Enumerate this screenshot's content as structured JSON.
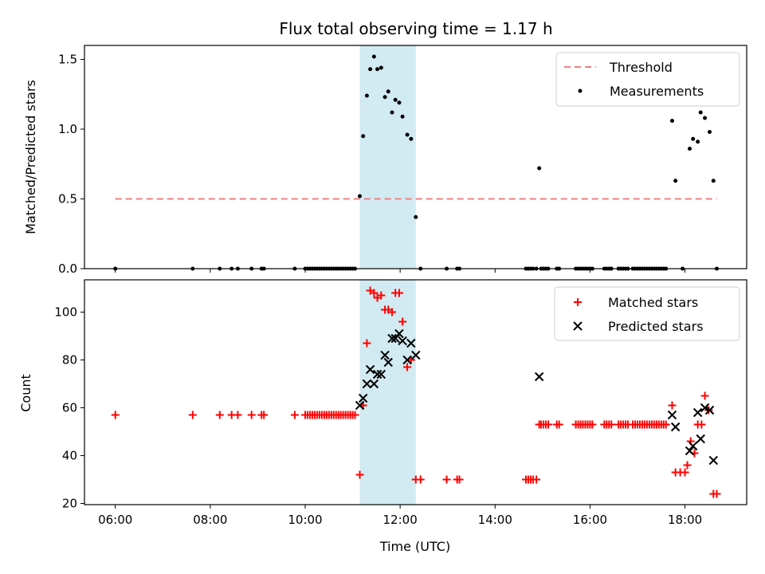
{
  "title": "Flux total observing time = 1.17 h",
  "colors": {
    "threshold": "#f08080",
    "measurement": "#000000",
    "matched": "#ff0000",
    "predicted": "#000000",
    "span": "#add8e6"
  },
  "chart_data": [
    {
      "type": "scatter",
      "ylabel": "Matched/Predicted stars",
      "ylim": [
        0,
        1.6
      ],
      "yticks": [
        0.0,
        0.5,
        1.0,
        1.5
      ],
      "ytick_labels": [
        "0.0",
        "0.5",
        "1.0",
        "1.5"
      ],
      "xlim": [
        5.35,
        19.3
      ],
      "xticks": [
        6,
        8,
        10,
        12,
        14,
        16,
        18
      ],
      "shaded_span": [
        11.15,
        12.33
      ],
      "legend": {
        "location": "upper right",
        "entries": [
          "Threshold",
          "Measurements"
        ]
      },
      "threshold": {
        "name": "Threshold",
        "value": 0.5,
        "x": [
          6.0,
          18.67
        ]
      },
      "series": [
        {
          "name": "Measurements",
          "marker": "dot",
          "points": [
            [
              6.0,
              0
            ],
            [
              7.63,
              0
            ],
            [
              8.2,
              0
            ],
            [
              8.45,
              0
            ],
            [
              8.58,
              0
            ],
            [
              8.87,
              0
            ],
            [
              9.08,
              0
            ],
            [
              9.13,
              0
            ],
            [
              9.78,
              0
            ],
            [
              10.0,
              0
            ],
            [
              10.05,
              0
            ],
            [
              10.1,
              0
            ],
            [
              10.15,
              0
            ],
            [
              10.2,
              0
            ],
            [
              10.25,
              0
            ],
            [
              10.3,
              0
            ],
            [
              10.35,
              0
            ],
            [
              10.4,
              0
            ],
            [
              10.45,
              0
            ],
            [
              10.5,
              0
            ],
            [
              10.55,
              0
            ],
            [
              10.6,
              0
            ],
            [
              10.65,
              0
            ],
            [
              10.7,
              0
            ],
            [
              10.75,
              0
            ],
            [
              10.8,
              0
            ],
            [
              10.85,
              0
            ],
            [
              10.9,
              0
            ],
            [
              10.95,
              0
            ],
            [
              11.0,
              0
            ],
            [
              11.05,
              0
            ],
            [
              11.15,
              0.52
            ],
            [
              11.22,
              0.95
            ],
            [
              11.3,
              1.24
            ],
            [
              11.37,
              1.43
            ],
            [
              11.45,
              1.52
            ],
            [
              11.52,
              1.43
            ],
            [
              11.6,
              1.44
            ],
            [
              11.68,
              1.23
            ],
            [
              11.75,
              1.27
            ],
            [
              11.83,
              1.12
            ],
            [
              11.9,
              1.21
            ],
            [
              11.98,
              1.19
            ],
            [
              12.05,
              1.09
            ],
            [
              12.15,
              0.96
            ],
            [
              12.23,
              0.93
            ],
            [
              12.33,
              0.37
            ],
            [
              12.43,
              0
            ],
            [
              12.98,
              0
            ],
            [
              13.2,
              0
            ],
            [
              13.25,
              0
            ],
            [
              14.65,
              0
            ],
            [
              14.7,
              0
            ],
            [
              14.75,
              0
            ],
            [
              14.8,
              0
            ],
            [
              14.87,
              0
            ],
            [
              14.93,
              0.72
            ],
            [
              14.97,
              0
            ],
            [
              15.02,
              0
            ],
            [
              15.07,
              0
            ],
            [
              15.12,
              0
            ],
            [
              15.3,
              0
            ],
            [
              15.35,
              0
            ],
            [
              15.7,
              0
            ],
            [
              15.75,
              0
            ],
            [
              15.8,
              0
            ],
            [
              15.85,
              0
            ],
            [
              15.9,
              0
            ],
            [
              15.95,
              0
            ],
            [
              16.0,
              0
            ],
            [
              16.05,
              0
            ],
            [
              16.3,
              0
            ],
            [
              16.35,
              0
            ],
            [
              16.4,
              0
            ],
            [
              16.45,
              0
            ],
            [
              16.6,
              0
            ],
            [
              16.65,
              0
            ],
            [
              16.7,
              0
            ],
            [
              16.75,
              0
            ],
            [
              16.8,
              0
            ],
            [
              16.9,
              0
            ],
            [
              16.95,
              0
            ],
            [
              17.0,
              0
            ],
            [
              17.05,
              0
            ],
            [
              17.1,
              0
            ],
            [
              17.15,
              0
            ],
            [
              17.2,
              0
            ],
            [
              17.25,
              0
            ],
            [
              17.3,
              0
            ],
            [
              17.35,
              0
            ],
            [
              17.4,
              0
            ],
            [
              17.45,
              0
            ],
            [
              17.5,
              0
            ],
            [
              17.55,
              0
            ],
            [
              17.6,
              0
            ],
            [
              17.73,
              1.06
            ],
            [
              17.8,
              0.63
            ],
            [
              17.95,
              0
            ],
            [
              18.1,
              0.86
            ],
            [
              18.17,
              0.93
            ],
            [
              18.27,
              0.91
            ],
            [
              18.33,
              1.12
            ],
            [
              18.42,
              1.08
            ],
            [
              18.52,
              0.98
            ],
            [
              18.6,
              0.63
            ],
            [
              18.67,
              0
            ]
          ]
        }
      ]
    },
    {
      "type": "scatter",
      "xlabel": "Time (UTC)",
      "ylabel": "Count",
      "ylim": [
        19.5,
        113.5
      ],
      "yticks": [
        20,
        40,
        60,
        80,
        100
      ],
      "ytick_labels": [
        "20",
        "40",
        "60",
        "80",
        "100"
      ],
      "xlim": [
        5.35,
        19.3
      ],
      "xticks": [
        6,
        8,
        10,
        12,
        14,
        16,
        18
      ],
      "xtick_labels": [
        "06:00",
        "08:00",
        "10:00",
        "12:00",
        "14:00",
        "16:00",
        "18:00"
      ],
      "shaded_span": [
        11.15,
        12.33
      ],
      "legend": {
        "location": "upper right",
        "entries": [
          "Matched stars",
          "Predicted stars"
        ]
      },
      "series": [
        {
          "name": "Matched stars",
          "marker": "plus",
          "points": [
            [
              6.0,
              57
            ],
            [
              7.63,
              57
            ],
            [
              8.2,
              57
            ],
            [
              8.45,
              57
            ],
            [
              8.58,
              57
            ],
            [
              8.87,
              57
            ],
            [
              9.08,
              57
            ],
            [
              9.13,
              57
            ],
            [
              9.78,
              57
            ],
            [
              10.0,
              57
            ],
            [
              10.05,
              57
            ],
            [
              10.1,
              57
            ],
            [
              10.15,
              57
            ],
            [
              10.2,
              57
            ],
            [
              10.25,
              57
            ],
            [
              10.3,
              57
            ],
            [
              10.35,
              57
            ],
            [
              10.4,
              57
            ],
            [
              10.45,
              57
            ],
            [
              10.5,
              57
            ],
            [
              10.55,
              57
            ],
            [
              10.6,
              57
            ],
            [
              10.65,
              57
            ],
            [
              10.7,
              57
            ],
            [
              10.75,
              57
            ],
            [
              10.8,
              57
            ],
            [
              10.85,
              57
            ],
            [
              10.9,
              57
            ],
            [
              10.95,
              57
            ],
            [
              11.0,
              57
            ],
            [
              11.05,
              57
            ],
            [
              11.15,
              32
            ],
            [
              11.22,
              61
            ],
            [
              11.3,
              87
            ],
            [
              11.37,
              109
            ],
            [
              11.45,
              108
            ],
            [
              11.52,
              106
            ],
            [
              11.6,
              107
            ],
            [
              11.68,
              101
            ],
            [
              11.75,
              101
            ],
            [
              11.83,
              100
            ],
            [
              11.9,
              108
            ],
            [
              11.98,
              108
            ],
            [
              12.05,
              96
            ],
            [
              12.15,
              77
            ],
            [
              12.23,
              80
            ],
            [
              12.33,
              30
            ],
            [
              12.43,
              30
            ],
            [
              12.98,
              30
            ],
            [
              13.2,
              30
            ],
            [
              13.25,
              30
            ],
            [
              14.65,
              30
            ],
            [
              14.7,
              30
            ],
            [
              14.75,
              30
            ],
            [
              14.8,
              30
            ],
            [
              14.87,
              30
            ],
            [
              14.93,
              53
            ],
            [
              14.97,
              53
            ],
            [
              15.02,
              53
            ],
            [
              15.07,
              53
            ],
            [
              15.12,
              53
            ],
            [
              15.3,
              53
            ],
            [
              15.35,
              53
            ],
            [
              15.7,
              53
            ],
            [
              15.75,
              53
            ],
            [
              15.8,
              53
            ],
            [
              15.85,
              53
            ],
            [
              15.9,
              53
            ],
            [
              15.95,
              53
            ],
            [
              16.0,
              53
            ],
            [
              16.05,
              53
            ],
            [
              16.3,
              53
            ],
            [
              16.35,
              53
            ],
            [
              16.4,
              53
            ],
            [
              16.45,
              53
            ],
            [
              16.6,
              53
            ],
            [
              16.65,
              53
            ],
            [
              16.7,
              53
            ],
            [
              16.75,
              53
            ],
            [
              16.8,
              53
            ],
            [
              16.9,
              53
            ],
            [
              16.95,
              53
            ],
            [
              17.0,
              53
            ],
            [
              17.05,
              53
            ],
            [
              17.1,
              53
            ],
            [
              17.15,
              53
            ],
            [
              17.2,
              53
            ],
            [
              17.25,
              53
            ],
            [
              17.3,
              53
            ],
            [
              17.35,
              53
            ],
            [
              17.4,
              53
            ],
            [
              17.45,
              53
            ],
            [
              17.5,
              53
            ],
            [
              17.55,
              53
            ],
            [
              17.6,
              53
            ],
            [
              17.73,
              61
            ],
            [
              17.8,
              33
            ],
            [
              17.9,
              33
            ],
            [
              18.0,
              33
            ],
            [
              18.05,
              36
            ],
            [
              18.12,
              46
            ],
            [
              18.2,
              41
            ],
            [
              18.27,
              53
            ],
            [
              18.35,
              53
            ],
            [
              18.42,
              65
            ],
            [
              18.5,
              59
            ],
            [
              18.6,
              24
            ],
            [
              18.67,
              24
            ]
          ]
        },
        {
          "name": "Predicted stars",
          "marker": "x",
          "points": [
            [
              11.15,
              61
            ],
            [
              11.22,
              64
            ],
            [
              11.3,
              70
            ],
            [
              11.37,
              76
            ],
            [
              11.45,
              70
            ],
            [
              11.52,
              74
            ],
            [
              11.6,
              74
            ],
            [
              11.68,
              82
            ],
            [
              11.75,
              79
            ],
            [
              11.83,
              89
            ],
            [
              11.9,
              89
            ],
            [
              11.98,
              91
            ],
            [
              12.05,
              88
            ],
            [
              12.15,
              80
            ],
            [
              12.23,
              87
            ],
            [
              12.33,
              82
            ],
            [
              14.93,
              73
            ],
            [
              17.73,
              57
            ],
            [
              17.8,
              52
            ],
            [
              18.1,
              42
            ],
            [
              18.17,
              44
            ],
            [
              18.27,
              58
            ],
            [
              18.33,
              47
            ],
            [
              18.42,
              60
            ],
            [
              18.52,
              59
            ],
            [
              18.6,
              38
            ]
          ]
        }
      ]
    }
  ]
}
